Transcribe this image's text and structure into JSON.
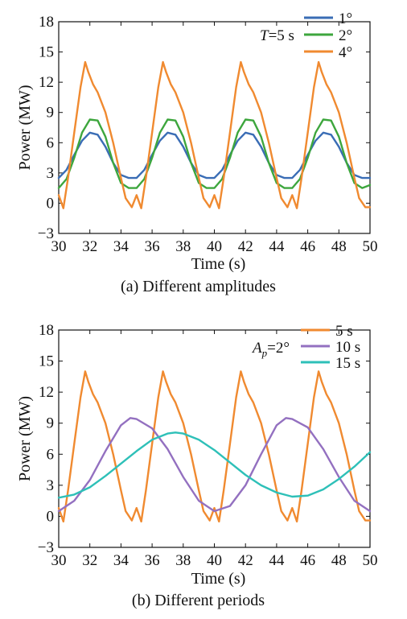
{
  "chart_data": [
    {
      "type": "line",
      "panel": "a",
      "caption": "(a) Different amplitudes",
      "xlabel": "Time (s)",
      "ylabel": "Power (MW)",
      "xlim": [
        30,
        50
      ],
      "ylim": [
        -3,
        18
      ],
      "xticks": [
        30,
        32,
        34,
        36,
        38,
        40,
        42,
        44,
        46,
        48,
        50
      ],
      "yticks": [
        -3,
        0,
        3,
        6,
        9,
        12,
        15,
        18
      ],
      "ytick_labels": [
        "−3",
        "0",
        "3",
        "6",
        "9",
        "12",
        "15",
        "18"
      ],
      "grid": false,
      "legend_position": "top-right",
      "annotation": {
        "italic": "T",
        "text": "=5 s"
      },
      "series": [
        {
          "name": "1°",
          "color": "#3A6DB5",
          "x": [
            30,
            30.5,
            31,
            31.5,
            32,
            32.5,
            33,
            33.5,
            34,
            34.5,
            35,
            35.5,
            36,
            36.5,
            37,
            37.5,
            38,
            38.5,
            39,
            39.5,
            40,
            40.5,
            41,
            41.5,
            42,
            42.5,
            43,
            43.5,
            44,
            44.5,
            45,
            45.5,
            46,
            46.5,
            47,
            47.5,
            48,
            48.5,
            49,
            49.5,
            50
          ],
          "y": [
            2.5,
            3.3,
            4.8,
            6.2,
            7.0,
            6.8,
            5.6,
            4.0,
            2.8,
            2.5,
            2.5,
            3.3,
            4.8,
            6.2,
            7.0,
            6.8,
            5.6,
            4.0,
            2.8,
            2.5,
            2.5,
            3.3,
            4.8,
            6.2,
            7.0,
            6.8,
            5.6,
            4.0,
            2.8,
            2.5,
            2.5,
            3.3,
            4.8,
            6.2,
            7.0,
            6.8,
            5.6,
            4.0,
            2.8,
            2.5,
            2.5
          ]
        },
        {
          "name": "2°",
          "color": "#3DA63D",
          "x": [
            30,
            30.5,
            31,
            31.5,
            32,
            32.5,
            33,
            33.5,
            34,
            34.5,
            35,
            35.5,
            36,
            36.5,
            37,
            37.5,
            38,
            38.5,
            39,
            39.5,
            40,
            40.5,
            41,
            41.5,
            42,
            42.5,
            43,
            43.5,
            44,
            44.5,
            45,
            45.5,
            46,
            46.5,
            47,
            47.5,
            48,
            48.5,
            49,
            49.5,
            50
          ],
          "y": [
            1.5,
            2.4,
            4.5,
            7.0,
            8.3,
            8.2,
            6.6,
            4.0,
            2.0,
            1.5,
            1.5,
            2.4,
            4.5,
            7.0,
            8.3,
            8.2,
            6.6,
            4.0,
            2.0,
            1.5,
            1.5,
            2.4,
            4.5,
            7.0,
            8.3,
            8.2,
            6.6,
            4.0,
            2.0,
            1.5,
            1.5,
            2.4,
            4.5,
            7.0,
            8.3,
            8.2,
            6.6,
            4.0,
            2.0,
            1.5,
            1.8
          ]
        },
        {
          "name": "4°",
          "color": "#F08A30",
          "x": [
            30,
            30.3,
            30.6,
            31,
            31.4,
            31.7,
            31.9,
            32.2,
            32.5,
            33,
            33.5,
            34,
            34.3,
            34.7,
            35,
            35.3,
            35.6,
            36,
            36.4,
            36.7,
            36.9,
            37.2,
            37.5,
            38,
            38.5,
            39,
            39.3,
            39.7,
            40,
            40.3,
            40.6,
            41,
            41.4,
            41.7,
            41.9,
            42.2,
            42.5,
            43,
            43.5,
            44,
            44.3,
            44.7,
            45,
            45.3,
            45.6,
            46,
            46.4,
            46.7,
            46.9,
            47.2,
            47.5,
            48,
            48.5,
            49,
            49.3,
            49.7,
            50
          ],
          "y": [
            0.8,
            -0.5,
            2.5,
            7.0,
            11.5,
            14.0,
            13.0,
            11.8,
            11.0,
            9.0,
            6.0,
            2.5,
            0.5,
            -0.4,
            0.8,
            -0.5,
            2.5,
            7.0,
            11.5,
            14.0,
            13.0,
            11.8,
            11.0,
            9.0,
            6.0,
            2.5,
            0.5,
            -0.4,
            0.8,
            -0.5,
            2.5,
            7.0,
            11.5,
            14.0,
            13.0,
            11.8,
            11.0,
            9.0,
            6.0,
            2.5,
            0.5,
            -0.4,
            0.8,
            -0.5,
            2.5,
            7.0,
            11.5,
            14.0,
            13.0,
            11.8,
            11.0,
            9.0,
            6.0,
            2.5,
            0.5,
            -0.4,
            -0.4
          ]
        }
      ]
    },
    {
      "type": "line",
      "panel": "b",
      "caption": "(b) Different periods",
      "xlabel": "Time (s)",
      "ylabel": "Power (MW)",
      "xlim": [
        30,
        50
      ],
      "ylim": [
        -3,
        18
      ],
      "xticks": [
        30,
        32,
        34,
        36,
        38,
        40,
        42,
        44,
        46,
        48,
        50
      ],
      "yticks": [
        -3,
        0,
        3,
        6,
        9,
        12,
        15,
        18
      ],
      "ytick_labels": [
        "−3",
        "0",
        "3",
        "6",
        "9",
        "12",
        "15",
        "18"
      ],
      "grid": false,
      "legend_position": "top-right",
      "annotation": {
        "italic": "A",
        "subscript": "p",
        "text": "=2°"
      },
      "series": [
        {
          "name": "5 s",
          "color": "#F08A30",
          "x": [
            30,
            30.3,
            30.6,
            31,
            31.4,
            31.7,
            31.9,
            32.2,
            32.5,
            33,
            33.5,
            34,
            34.3,
            34.7,
            35,
            35.3,
            35.6,
            36,
            36.4,
            36.7,
            36.9,
            37.2,
            37.5,
            38,
            38.5,
            39,
            39.3,
            39.7,
            40,
            40.3,
            40.6,
            41,
            41.4,
            41.7,
            41.9,
            42.2,
            42.5,
            43,
            43.5,
            44,
            44.3,
            44.7,
            45,
            45.3,
            45.6,
            46,
            46.4,
            46.7,
            46.9,
            47.2,
            47.5,
            48,
            48.5,
            49,
            49.3,
            49.7,
            50
          ],
          "y": [
            0.8,
            -0.5,
            2.5,
            7.0,
            11.5,
            14.0,
            13.0,
            11.8,
            11.0,
            9.0,
            6.0,
            2.5,
            0.5,
            -0.4,
            0.8,
            -0.5,
            2.5,
            7.0,
            11.5,
            14.0,
            13.0,
            11.8,
            11.0,
            9.0,
            6.0,
            2.5,
            0.5,
            -0.4,
            0.8,
            -0.5,
            2.5,
            7.0,
            11.5,
            14.0,
            13.0,
            11.8,
            11.0,
            9.0,
            6.0,
            2.5,
            0.5,
            -0.4,
            0.8,
            -0.5,
            2.5,
            7.0,
            11.5,
            14.0,
            13.0,
            11.8,
            11.0,
            9.0,
            6.0,
            2.5,
            0.5,
            -0.4,
            -0.4
          ]
        },
        {
          "name": "10 s",
          "color": "#9370C0",
          "x": [
            30,
            31,
            32,
            33,
            34,
            34.6,
            35,
            36,
            37,
            38,
            39,
            40,
            41,
            42,
            43,
            44,
            44.6,
            45,
            46,
            47,
            48,
            49,
            50
          ],
          "y": [
            0.5,
            1.5,
            3.5,
            6.3,
            8.8,
            9.5,
            9.4,
            8.5,
            6.5,
            3.8,
            1.5,
            0.5,
            1.0,
            3.0,
            6.0,
            8.8,
            9.5,
            9.4,
            8.6,
            6.5,
            3.8,
            1.5,
            0.5
          ]
        },
        {
          "name": "15 s",
          "color": "#2EC0B8",
          "x": [
            30,
            31,
            32,
            33,
            34,
            35,
            36,
            37,
            37.5,
            38,
            39,
            40,
            41,
            42,
            43,
            44,
            45,
            46,
            47,
            48,
            49,
            50
          ],
          "y": [
            1.8,
            2.1,
            2.8,
            3.9,
            5.1,
            6.3,
            7.4,
            8.0,
            8.1,
            8.0,
            7.4,
            6.4,
            5.2,
            4.0,
            3.0,
            2.3,
            1.9,
            2.0,
            2.6,
            3.6,
            4.8,
            6.2
          ]
        }
      ]
    }
  ]
}
